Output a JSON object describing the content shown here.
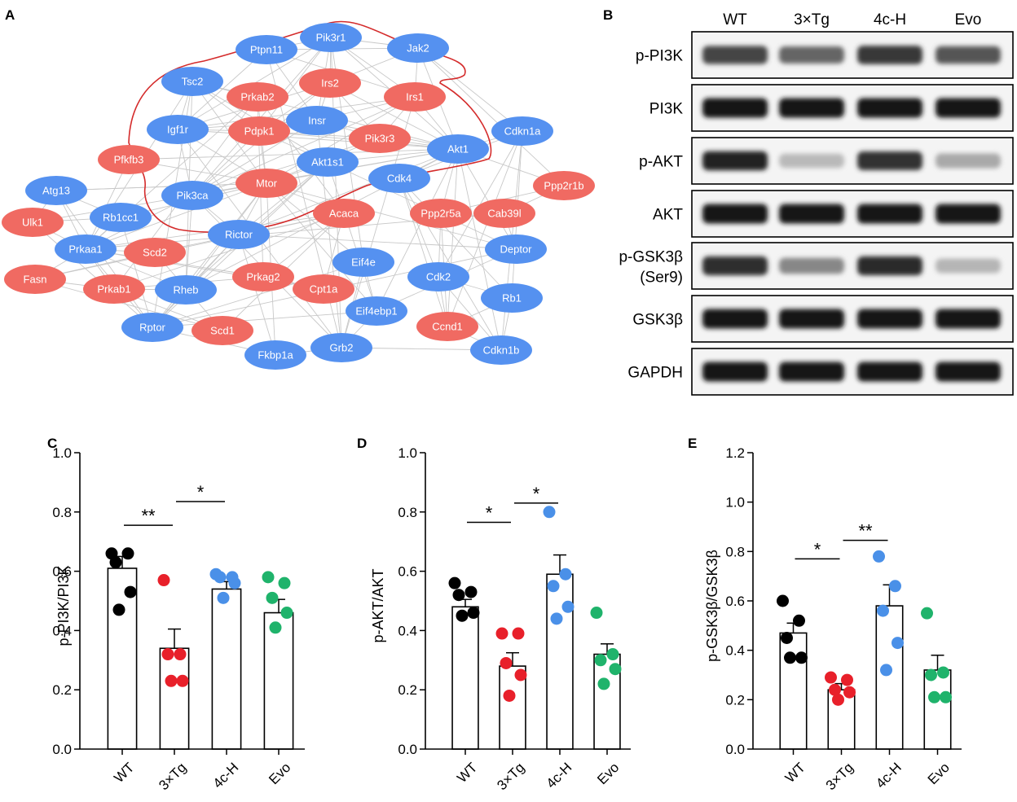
{
  "panel_labels": {
    "a": "A",
    "b": "B",
    "c": "C",
    "d": "D",
    "e": "E"
  },
  "colors": {
    "blue_node": "#5591f0",
    "red_node": "#f06a62",
    "edge": "#c8c8c8",
    "highlight_outline": "#d42b2b",
    "group_WT": "#000000",
    "group_3xTg": "#e8202a",
    "group_4cH": "#4a90e8",
    "group_Evo": "#1fb36b"
  },
  "network": {
    "nodes": [
      {
        "id": "Pik3r1",
        "color": "blue"
      },
      {
        "id": "Ptpn11",
        "color": "blue"
      },
      {
        "id": "Jak2",
        "color": "blue"
      },
      {
        "id": "Tsc2",
        "color": "blue"
      },
      {
        "id": "Irs2",
        "color": "red"
      },
      {
        "id": "Prkab2",
        "color": "red"
      },
      {
        "id": "Irs1",
        "color": "red"
      },
      {
        "id": "Insr",
        "color": "blue"
      },
      {
        "id": "Igf1r",
        "color": "blue"
      },
      {
        "id": "Pdpk1",
        "color": "red"
      },
      {
        "id": "Pik3r3",
        "color": "red"
      },
      {
        "id": "Cdkn1a",
        "color": "blue"
      },
      {
        "id": "Akt1",
        "color": "blue"
      },
      {
        "id": "Akt1s1",
        "color": "blue"
      },
      {
        "id": "Pfkfb3",
        "color": "red"
      },
      {
        "id": "Mtor",
        "color": "red"
      },
      {
        "id": "Cdk4",
        "color": "blue"
      },
      {
        "id": "Ppp2r1b",
        "color": "red"
      },
      {
        "id": "Atg13",
        "color": "blue"
      },
      {
        "id": "Pik3ca",
        "color": "blue"
      },
      {
        "id": "Ulk1",
        "color": "red"
      },
      {
        "id": "Rb1cc1",
        "color": "blue"
      },
      {
        "id": "Acaca",
        "color": "red"
      },
      {
        "id": "Ppp2r5a",
        "color": "red"
      },
      {
        "id": "Cab39l",
        "color": "red"
      },
      {
        "id": "Rictor",
        "color": "blue"
      },
      {
        "id": "Prkaa1",
        "color": "blue"
      },
      {
        "id": "Scd2",
        "color": "red"
      },
      {
        "id": "Deptor",
        "color": "blue"
      },
      {
        "id": "Eif4e",
        "color": "blue"
      },
      {
        "id": "Fasn",
        "color": "red"
      },
      {
        "id": "Prkag2",
        "color": "red"
      },
      {
        "id": "Cdk2",
        "color": "blue"
      },
      {
        "id": "Prkab1",
        "color": "red"
      },
      {
        "id": "Rheb",
        "color": "blue"
      },
      {
        "id": "Cpt1a",
        "color": "red"
      },
      {
        "id": "Rb1",
        "color": "blue"
      },
      {
        "id": "Eif4ebp1",
        "color": "blue"
      },
      {
        "id": "Ccnd1",
        "color": "red"
      },
      {
        "id": "Rptor",
        "color": "blue"
      },
      {
        "id": "Scd1",
        "color": "red"
      },
      {
        "id": "Grb2",
        "color": "blue"
      },
      {
        "id": "Fkbp1a",
        "color": "blue"
      },
      {
        "id": "Cdkn1b",
        "color": "blue"
      }
    ]
  },
  "blot": {
    "columns": [
      "WT",
      "3×Tg",
      "4c-H",
      "Evo"
    ],
    "rows": [
      {
        "label": "p-PI3K",
        "intensity": [
          0.78,
          0.62,
          0.85,
          0.7
        ]
      },
      {
        "label": "PI3K",
        "intensity": [
          1.0,
          1.0,
          1.0,
          1.0
        ]
      },
      {
        "label": "p-AKT",
        "intensity": [
          0.95,
          0.2,
          0.88,
          0.28
        ]
      },
      {
        "label": "AKT",
        "intensity": [
          1.0,
          1.0,
          1.0,
          1.0
        ]
      },
      {
        "label": "p-GSK3β",
        "label2": "(Ser9)",
        "intensity": [
          0.9,
          0.45,
          0.92,
          0.22
        ]
      },
      {
        "label": "GSK3β",
        "intensity": [
          1.0,
          1.0,
          1.0,
          1.0
        ]
      },
      {
        "label": "GAPDH",
        "intensity": [
          1.0,
          1.0,
          1.0,
          1.0
        ]
      }
    ]
  },
  "chart_data": [
    {
      "panel": "C",
      "type": "bar",
      "categories": [
        "WT",
        "3×Tg",
        "4c-H",
        "Evo"
      ],
      "values": [
        0.61,
        0.34,
        0.54,
        0.46
      ],
      "errors": [
        0.04,
        0.065,
        0.025,
        0.045
      ],
      "points": [
        [
          0.66,
          0.66,
          0.63,
          0.53,
          0.47
        ],
        [
          0.57,
          0.32,
          0.32,
          0.23,
          0.23
        ],
        [
          0.59,
          0.58,
          0.58,
          0.56,
          0.51
        ],
        [
          0.58,
          0.56,
          0.51,
          0.46,
          0.41
        ]
      ],
      "ylabel": "p-PI3K/PI3K",
      "xlabel": "",
      "ylim": [
        0.0,
        1.0
      ],
      "yticks": [
        "0.0",
        "0.2",
        "0.4",
        "0.6",
        "0.8",
        "1.0"
      ],
      "significance": [
        {
          "from": "WT",
          "to": "3×Tg",
          "label": "**",
          "y": 0.755
        },
        {
          "from": "3×Tg",
          "to": "4c-H",
          "label": "*",
          "y": 0.835
        }
      ]
    },
    {
      "panel": "D",
      "type": "bar",
      "categories": [
        "WT",
        "3×Tg",
        "4c-H",
        "Evo"
      ],
      "values": [
        0.48,
        0.28,
        0.59,
        0.32
      ],
      "errors": [
        0.025,
        0.045,
        0.065,
        0.035
      ],
      "points": [
        [
          0.56,
          0.53,
          0.52,
          0.46,
          0.45
        ],
        [
          0.39,
          0.39,
          0.29,
          0.25,
          0.18
        ],
        [
          0.8,
          0.59,
          0.55,
          0.48,
          0.44
        ],
        [
          0.46,
          0.32,
          0.3,
          0.27,
          0.22
        ]
      ],
      "ylabel": "p-AKT/AKT",
      "xlabel": "",
      "ylim": [
        0.0,
        1.0
      ],
      "yticks": [
        "0.0",
        "0.2",
        "0.4",
        "0.6",
        "0.8",
        "1.0"
      ],
      "significance": [
        {
          "from": "WT",
          "to": "3×Tg",
          "label": "*",
          "y": 0.765
        },
        {
          "from": "3×Tg",
          "to": "4c-H",
          "label": "*",
          "y": 0.83
        }
      ]
    },
    {
      "panel": "E",
      "type": "bar",
      "categories": [
        "WT",
        "3×Tg",
        "4c-H",
        "Evo"
      ],
      "values": [
        0.47,
        0.24,
        0.58,
        0.32
      ],
      "errors": [
        0.04,
        0.025,
        0.085,
        0.06
      ],
      "points": [
        [
          0.6,
          0.52,
          0.45,
          0.37,
          0.37
        ],
        [
          0.29,
          0.28,
          0.24,
          0.23,
          0.2
        ],
        [
          0.78,
          0.66,
          0.56,
          0.43,
          0.32
        ],
        [
          0.55,
          0.31,
          0.3,
          0.21,
          0.21
        ]
      ],
      "ylabel": "p-GSK3β/GSK3β",
      "xlabel": "",
      "ylim": [
        0.0,
        1.2
      ],
      "yticks": [
        "0.0",
        "0.2",
        "0.4",
        "0.6",
        "0.8",
        "1.0",
        "1.2"
      ],
      "significance": [
        {
          "from": "WT",
          "to": "3×Tg",
          "label": "*",
          "y": 0.77
        },
        {
          "from": "3×Tg",
          "to": "4c-H",
          "label": "**",
          "y": 0.845
        }
      ]
    }
  ]
}
